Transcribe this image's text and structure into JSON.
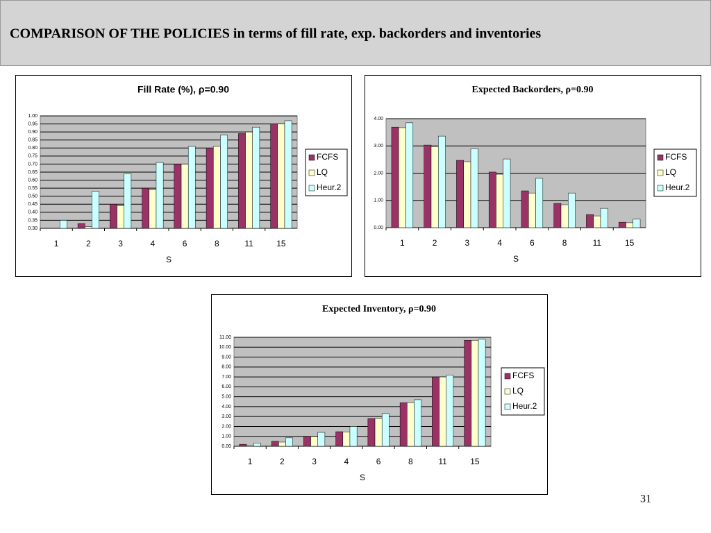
{
  "title": "COMPARISON OF THE POLICIES in terms of fill rate, exp. backorders and inventories",
  "page_number": "31",
  "chart_data": [
    {
      "type": "bar",
      "title": "Fill Rate (%), ρ=0.90",
      "x_label": "S",
      "categories": [
        "1",
        "2",
        "3",
        "4",
        "6",
        "8",
        "11",
        "15"
      ],
      "series": [
        {
          "name": "FCFS",
          "color": "#993366",
          "values": [
            0.28,
            0.33,
            0.45,
            0.55,
            0.7,
            0.8,
            0.89,
            0.95
          ]
        },
        {
          "name": "LQ",
          "color": "#ffffcc",
          "values": [
            0.27,
            0.31,
            0.44,
            0.54,
            0.7,
            0.81,
            0.9,
            0.95
          ]
        },
        {
          "name": "Heur.2",
          "color": "#ccffff",
          "values": [
            0.35,
            0.53,
            0.64,
            0.71,
            0.81,
            0.88,
            0.93,
            0.97
          ]
        }
      ],
      "ylim": [
        0.3,
        1.0
      ],
      "yticks": [
        {
          "value": 0.3,
          "label": "0.30"
        },
        {
          "value": 0.35,
          "label": "0.35"
        },
        {
          "value": 0.4,
          "label": "0.40"
        },
        {
          "value": 0.45,
          "label": "0.45"
        },
        {
          "value": 0.5,
          "label": "0.50"
        },
        {
          "value": 0.55,
          "label": "0.55"
        },
        {
          "value": 0.6,
          "label": "0.60"
        },
        {
          "value": 0.65,
          "label": "0.65"
        },
        {
          "value": 0.7,
          "label": "0.70"
        },
        {
          "value": 0.75,
          "label": "0.75"
        },
        {
          "value": 0.8,
          "label": "0.80"
        },
        {
          "value": 0.85,
          "label": "0.85"
        },
        {
          "value": 0.9,
          "label": "0.90"
        },
        {
          "value": 0.95,
          "label": "0.95"
        },
        {
          "value": 1.0,
          "label": "1.00"
        }
      ],
      "grid": true,
      "legend": "right"
    },
    {
      "type": "bar",
      "title": "Expected Backorders, ρ=0.90",
      "x_label": "S",
      "categories": [
        "1",
        "2",
        "3",
        "4",
        "6",
        "8",
        "11",
        "15"
      ],
      "series": [
        {
          "name": "FCFS",
          "color": "#993366",
          "values": [
            3.69,
            3.03,
            2.47,
            2.04,
            1.35,
            0.89,
            0.48,
            0.2
          ]
        },
        {
          "name": "LQ",
          "color": "#ffffcc",
          "values": [
            3.67,
            2.98,
            2.42,
            1.96,
            1.27,
            0.84,
            0.43,
            0.18
          ]
        },
        {
          "name": "Heur.2",
          "color": "#ccffff",
          "values": [
            3.85,
            3.36,
            2.9,
            2.52,
            1.81,
            1.27,
            0.71,
            0.31
          ]
        }
      ],
      "ylim": [
        0,
        4
      ],
      "yticks": [
        {
          "value": 0,
          "label": "0.00"
        },
        {
          "value": 1,
          "label": "1.00"
        },
        {
          "value": 2,
          "label": "2.00"
        },
        {
          "value": 3,
          "label": "3.00"
        },
        {
          "value": 4,
          "label": "4.00"
        }
      ],
      "grid": true,
      "legend": "right"
    },
    {
      "type": "bar",
      "title": "Expected Inventory, ρ=0.90",
      "x_label": "S",
      "categories": [
        "1",
        "2",
        "3",
        "4",
        "6",
        "8",
        "11",
        "15"
      ],
      "series": [
        {
          "name": "FCFS",
          "color": "#993366",
          "values": [
            0.2,
            0.5,
            1.0,
            1.47,
            2.8,
            4.4,
            7.0,
            10.7
          ]
        },
        {
          "name": "LQ",
          "color": "#ffffcc",
          "values": [
            0.1,
            0.42,
            0.98,
            1.45,
            2.8,
            4.4,
            7.0,
            10.7
          ]
        },
        {
          "name": "Heur.2",
          "color": "#ccffff",
          "values": [
            0.33,
            0.85,
            1.4,
            2.0,
            3.3,
            4.7,
            7.2,
            10.8
          ]
        }
      ],
      "ylim": [
        0,
        11
      ],
      "yticks": [
        {
          "value": 0,
          "label": "0.00"
        },
        {
          "value": 1,
          "label": "1.00"
        },
        {
          "value": 2,
          "label": "2.00"
        },
        {
          "value": 3,
          "label": "3.00"
        },
        {
          "value": 4,
          "label": "4.00"
        },
        {
          "value": 5,
          "label": "5.00"
        },
        {
          "value": 6,
          "label": "6.00"
        },
        {
          "value": 7,
          "label": "7.00"
        },
        {
          "value": 8,
          "label": "8.00"
        },
        {
          "value": 9,
          "label": "9.00"
        },
        {
          "value": 10,
          "label": "10.00"
        },
        {
          "value": 11,
          "label": "11.00"
        }
      ],
      "grid": true,
      "legend": "right"
    }
  ]
}
